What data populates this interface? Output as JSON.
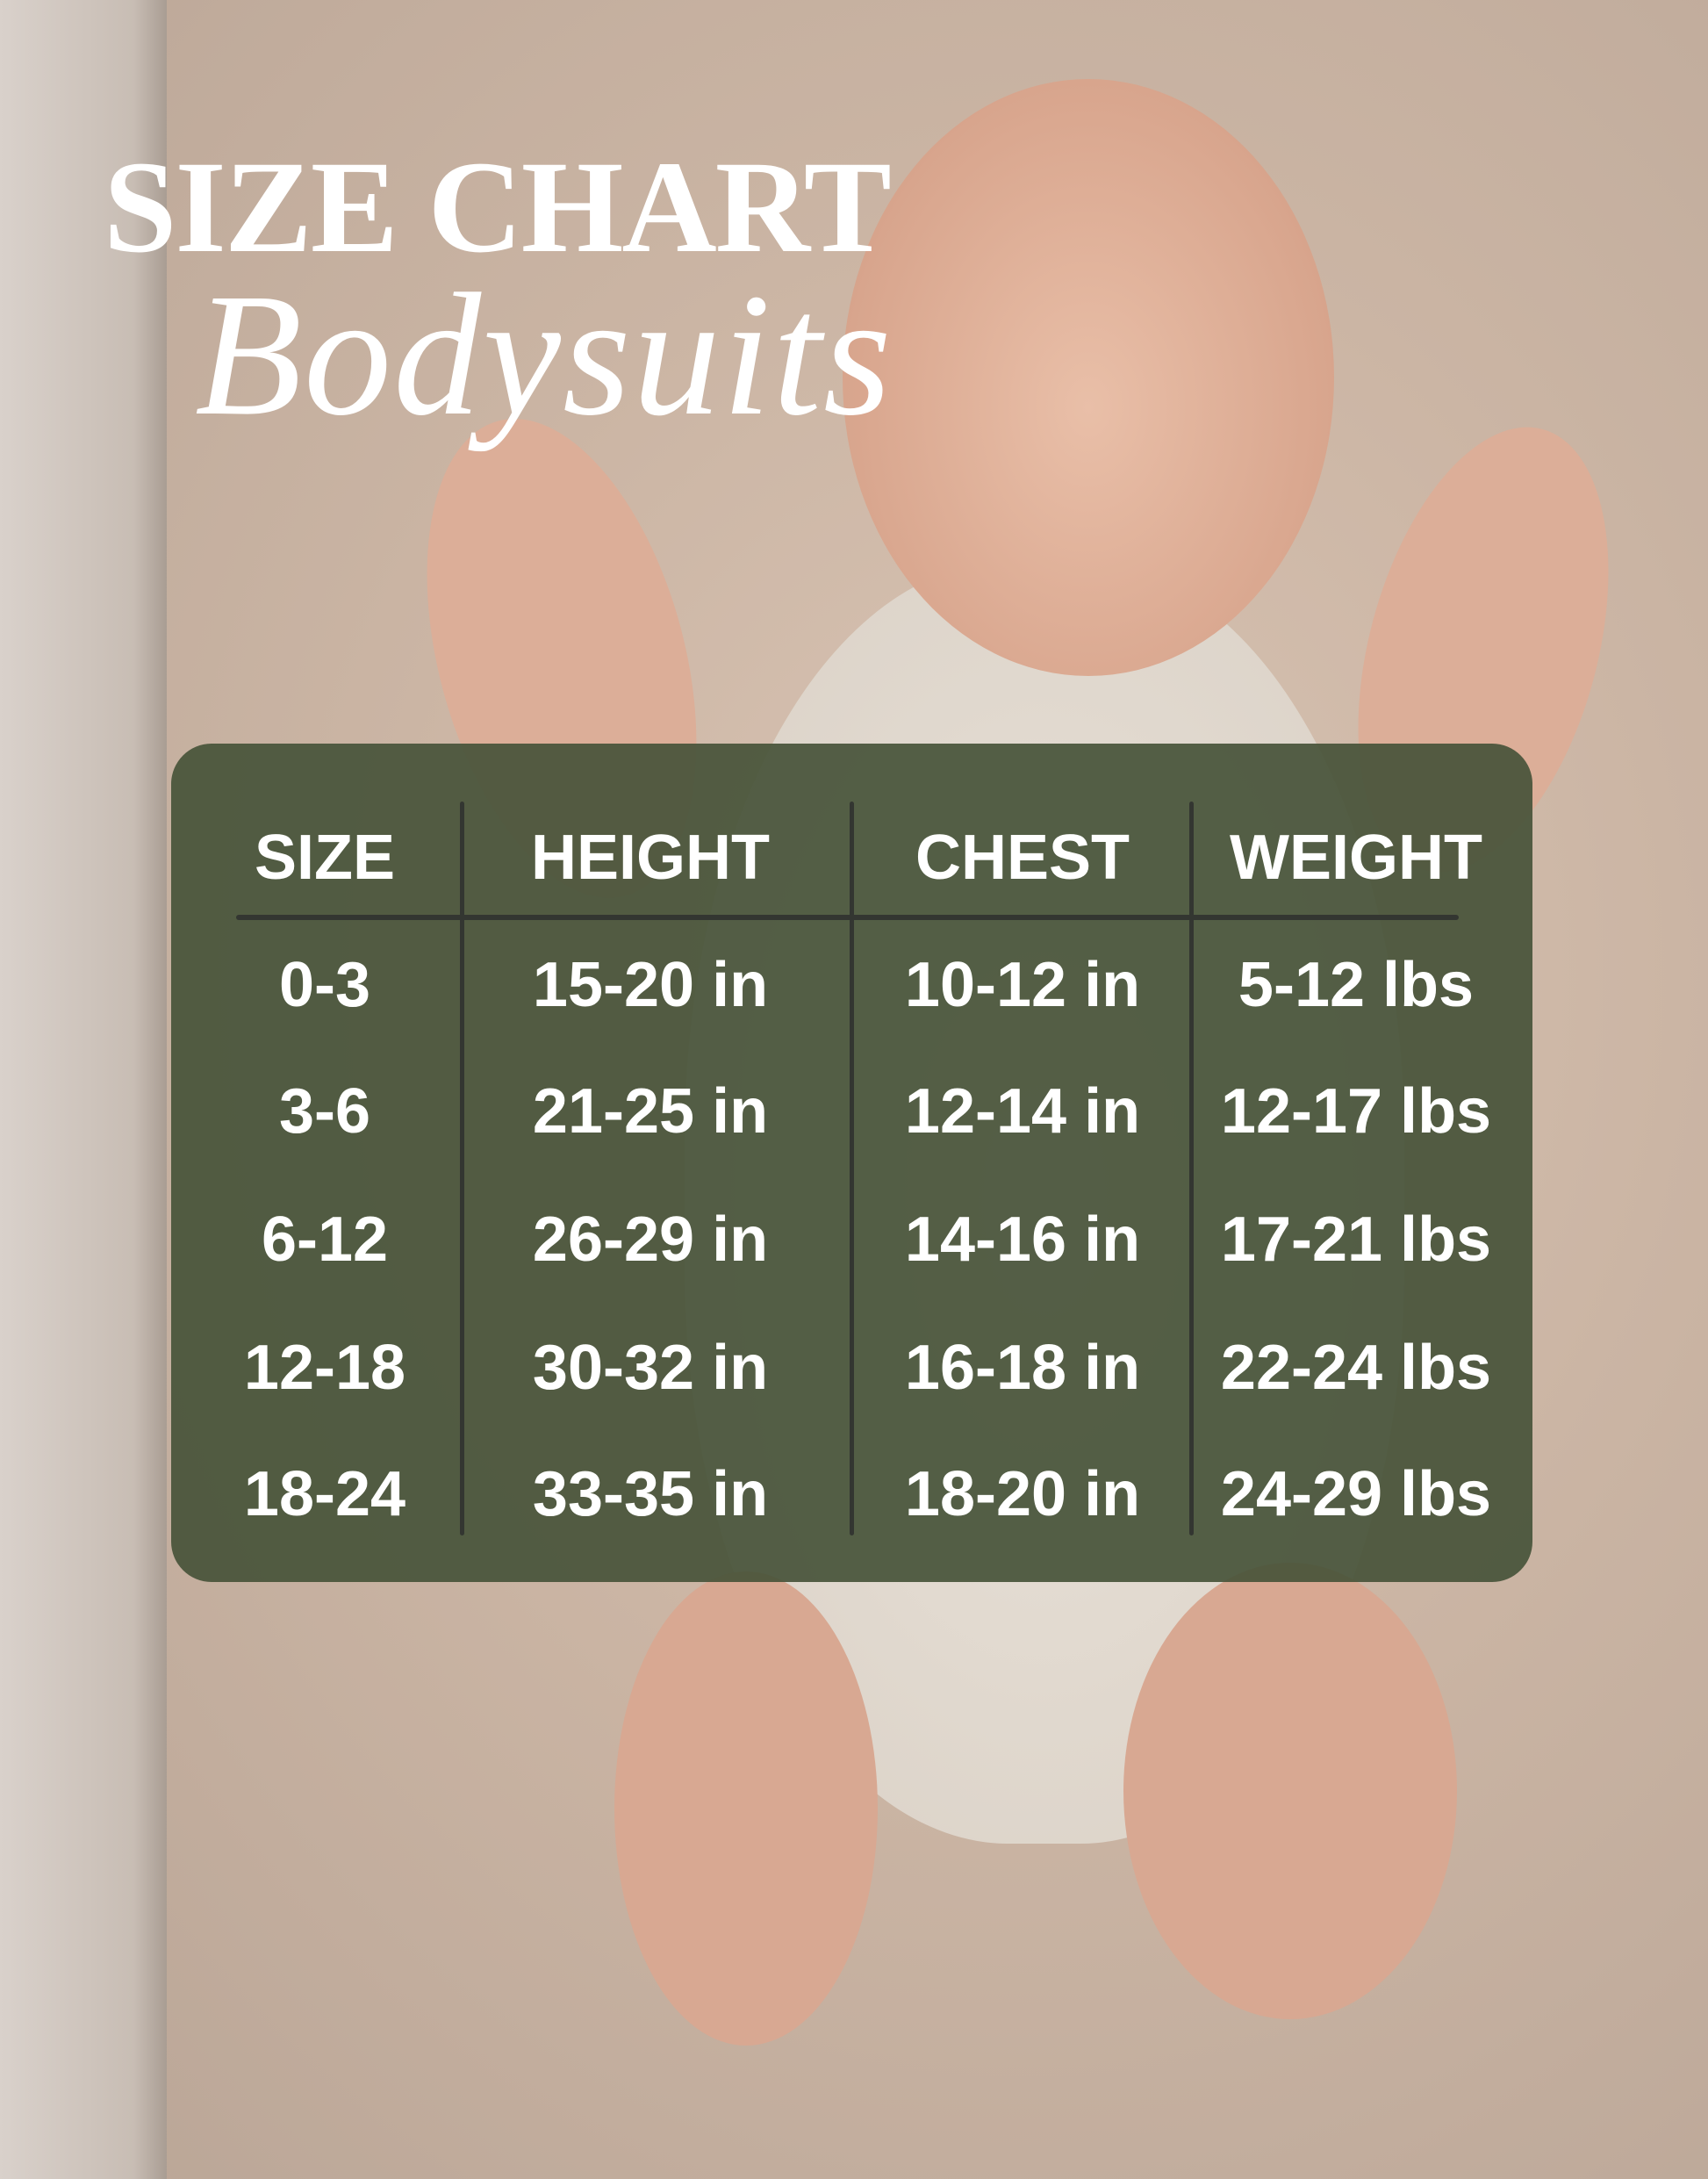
{
  "title": "SIZE CHART",
  "subtitle": "Bodysuits",
  "colors": {
    "card": "#4f5a43",
    "divider": "#333631",
    "text": "#ffffff"
  },
  "table": {
    "headers": [
      "SIZE",
      "HEIGHT",
      "CHEST",
      "WEIGHT"
    ],
    "rows": [
      [
        "0-3",
        "15-20 in",
        "10-12 in",
        "5-12 lbs"
      ],
      [
        "3-6",
        "21-25 in",
        "12-14 in",
        "12-17 lbs"
      ],
      [
        "6-12",
        "26-29 in",
        "14-16 in",
        "17-21 lbs"
      ],
      [
        "12-18",
        "30-32 in",
        "16-18 in",
        "22-24 lbs"
      ],
      [
        "18-24",
        "33-35 in",
        "18-20 in",
        "24-29 lbs"
      ]
    ]
  }
}
